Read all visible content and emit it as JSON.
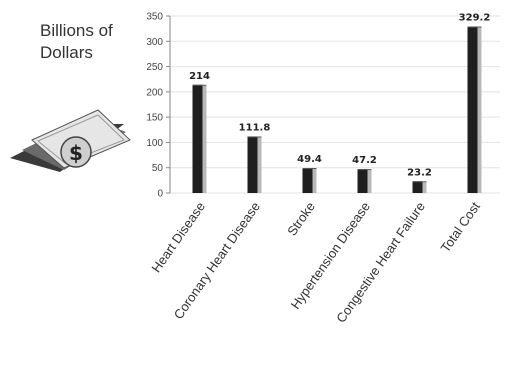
{
  "chart_data": {
    "type": "bar",
    "ylabel": "Billions of Dollars",
    "categories": [
      "Heart Disease",
      "Coronary Heart Disease",
      "Stroke",
      "Hypertension Disease",
      "Congestive Heart  Failure",
      "Total Cost"
    ],
    "values": [
      214,
      111.8,
      49.4,
      47.2,
      23.2,
      329.2
    ],
    "value_labels": [
      "214",
      "111.8",
      "49.4",
      "47.2",
      "23.2",
      "329.2"
    ],
    "yticks": [
      "0",
      "50",
      "100",
      "150",
      "200",
      "250",
      "300",
      "350"
    ],
    "ylim": [
      0,
      350
    ],
    "grid": true,
    "colors": {
      "bar_dark": "#1f1f1f",
      "bar_light": "#b8b8b8",
      "grid": "#e3e3e3",
      "axis": "#888888"
    }
  },
  "decor": {
    "icon": "money-icon",
    "symbol": "$"
  }
}
